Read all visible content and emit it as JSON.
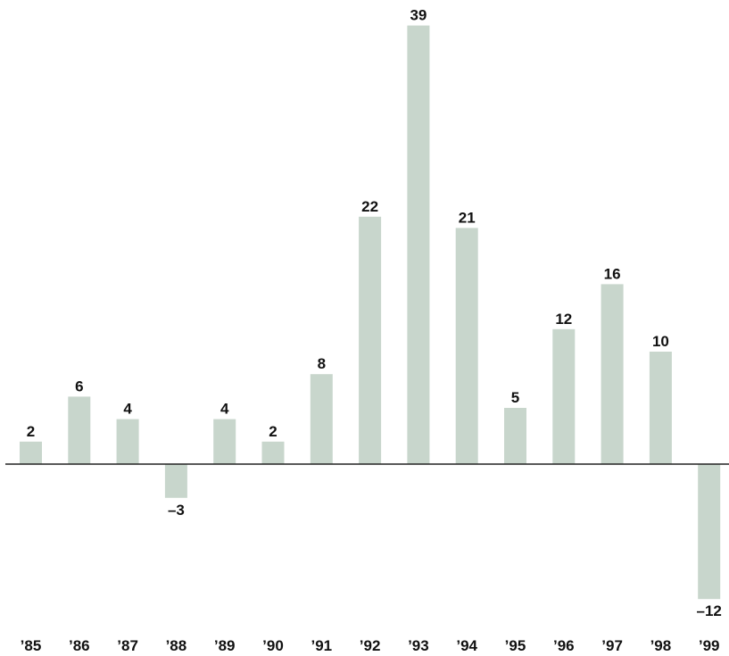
{
  "chart_data": {
    "type": "bar",
    "categories": [
      "’85",
      "’86",
      "’87",
      "’88",
      "’89",
      "’90",
      "’91",
      "’92",
      "’93",
      "’94",
      "’95",
      "’96",
      "’97",
      "’98",
      "’99"
    ],
    "values": [
      2,
      6,
      4,
      -3,
      4,
      2,
      8,
      22,
      39,
      21,
      5,
      12,
      16,
      10,
      -12
    ],
    "value_labels": [
      "2",
      "6",
      "4",
      "–3",
      "4",
      "2",
      "8",
      "22",
      "39",
      "21",
      "5",
      "12",
      "16",
      "10",
      "–12"
    ],
    "ylim": [
      -12,
      39
    ],
    "grid": false,
    "legend": "none",
    "colors": {
      "bar": "#c8d6cc",
      "axis": "#222222",
      "text": "#111111"
    }
  }
}
